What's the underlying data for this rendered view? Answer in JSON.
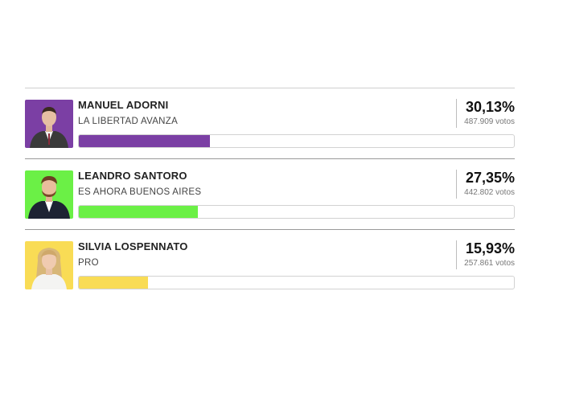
{
  "colors": {
    "adorni": "#7b3fa4",
    "santoro": "#6bf046",
    "lospennato": "#f9dc55"
  },
  "candidates": [
    {
      "name": "MANUEL ADORNI",
      "party": "LA LIBERTAD AVANZA",
      "percent_label": "30,13%",
      "votes_label": "487.909 votos",
      "percent": 30.13,
      "color": "#7b3fa4",
      "photo_bg": "#7b3fa4"
    },
    {
      "name": "LEANDRO SANTORO",
      "party": "ES AHORA BUENOS AIRES",
      "percent_label": "27,35%",
      "votes_label": "442.802 votos",
      "percent": 27.35,
      "color": "#6bf046",
      "photo_bg": "#6bf046"
    },
    {
      "name": "SILVIA LOSPENNATO",
      "party": "PRO",
      "percent_label": "15,93%",
      "votes_label": "257.861 votos",
      "percent": 15.93,
      "color": "#f9dc55",
      "photo_bg": "#f9dc55"
    }
  ]
}
